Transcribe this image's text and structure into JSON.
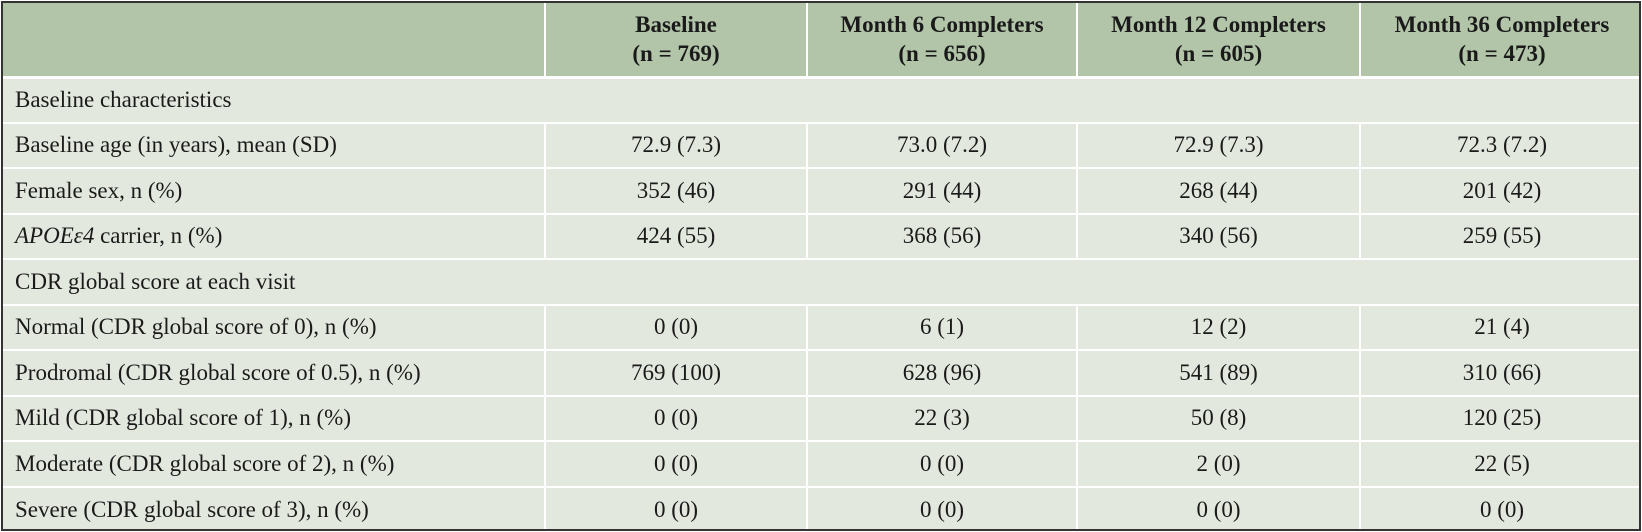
{
  "header": {
    "columns": [
      {
        "title": "",
        "n": ""
      },
      {
        "title": "Baseline",
        "n": "(n = 769)"
      },
      {
        "title": "Month 6 Completers",
        "n": "(n = 656)"
      },
      {
        "title": "Month 12 Completers",
        "n": "(n = 605)"
      },
      {
        "title": "Month 36 Completers",
        "n": "(n = 473)"
      }
    ]
  },
  "sections": [
    {
      "title": "Baseline characteristics",
      "rows": [
        {
          "label": "Baseline age (in years), mean (SD)",
          "values": [
            "72.9 (7.3)",
            "73.0 (7.2)",
            "72.9 (7.3)",
            "72.3 (7.2)"
          ]
        },
        {
          "label": "Female sex, n (%)",
          "values": [
            "352 (46)",
            "291 (44)",
            "268 (44)",
            "201 (42)"
          ]
        },
        {
          "label_italic": "APOEε4",
          "label": " carrier, n (%)",
          "values": [
            "424 (55)",
            "368 (56)",
            "340 (56)",
            "259 (55)"
          ]
        }
      ]
    },
    {
      "title": "CDR global score at each visit",
      "rows": [
        {
          "label": "Normal (CDR global score of 0), n (%)",
          "values": [
            "0 (0)",
            "6 (1)",
            "12 (2)",
            "21 (4)"
          ]
        },
        {
          "label": "Prodromal (CDR global score of 0.5), n (%)",
          "values": [
            "769 (100)",
            "628 (96)",
            "541 (89)",
            "310 (66)"
          ]
        },
        {
          "label": "Mild (CDR global score of 1), n (%)",
          "values": [
            "0 (0)",
            "22 (3)",
            "50 (8)",
            "120 (25)"
          ]
        },
        {
          "label": "Moderate (CDR global score of 2), n (%)",
          "values": [
            "0 (0)",
            "0 (0)",
            "2 (0)",
            "22 (5)"
          ]
        },
        {
          "label": "Severe (CDR global score of 3), n (%)",
          "values": [
            "0 (0)",
            "0 (0)",
            "0 (0)",
            "0 (0)"
          ]
        }
      ]
    }
  ]
}
